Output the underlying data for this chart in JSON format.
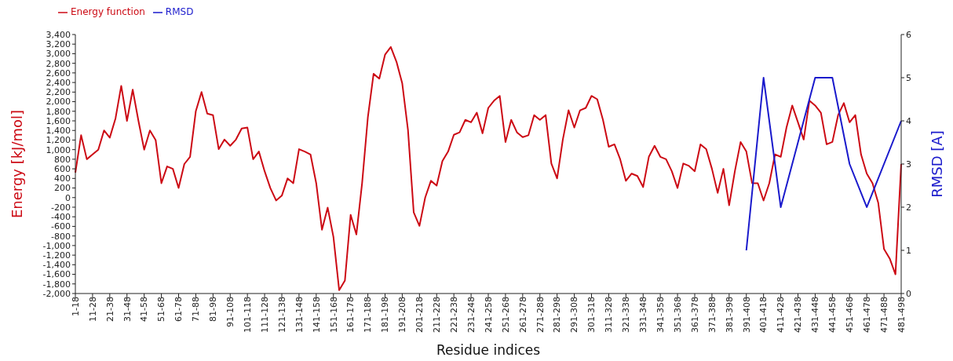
{
  "chart_data": {
    "type": "line",
    "xlabel": "Residue indices",
    "ylabel": "Energy [kJ/mol]",
    "y2label": "RMSD [A]",
    "categories": [
      "1-18",
      null,
      null,
      "11-28",
      null,
      null,
      "21-38",
      null,
      null,
      "31-48",
      null,
      null,
      "41-58",
      null,
      null,
      "51-68",
      null,
      null,
      "61-78",
      null,
      null,
      "71-88",
      null,
      null,
      "81-98",
      null,
      null,
      "91-108",
      null,
      null,
      "101-118",
      null,
      null,
      "111-128",
      null,
      null,
      "121-138",
      null,
      null,
      "131-148",
      null,
      null,
      "141-158",
      null,
      null,
      "151-168",
      null,
      null,
      "161-178",
      null,
      null,
      "171-188",
      null,
      null,
      "181-198",
      null,
      null,
      "191-208",
      null,
      null,
      "201-218",
      null,
      null,
      "211-228",
      null,
      null,
      "221-238",
      null,
      null,
      "231-248",
      null,
      null,
      "241-258",
      null,
      null,
      "251-268",
      null,
      null,
      "261-278",
      null,
      null,
      "271-288",
      null,
      null,
      "281-298",
      null,
      null,
      "291-308",
      null,
      null,
      "301-318",
      null,
      null,
      "311-328",
      null,
      null,
      "321-338",
      null,
      null,
      "331-348",
      null,
      null,
      "341-358",
      null,
      null,
      "351-368",
      null,
      null,
      "361-378",
      null,
      null,
      "371-388",
      null,
      null,
      "381-398",
      null,
      null,
      "391-408",
      null,
      null,
      "401-418",
      null,
      null,
      "411-428",
      null,
      null,
      "421-438",
      null,
      null,
      "431-448",
      null,
      null,
      "441-458",
      null,
      null,
      "451-468",
      null,
      null,
      "461-478",
      null,
      null,
      "471-488",
      null,
      null,
      "481-498"
    ],
    "series": [
      {
        "name": "Energy function",
        "color": "#cc0a14",
        "values": [
          520,
          1300,
          800,
          900,
          1000,
          1400,
          1250,
          1650,
          2330,
          1600,
          2250,
          1600,
          1000,
          1400,
          1200,
          300,
          650,
          600,
          200,
          700,
          850,
          1800,
          2200,
          1750,
          1720,
          1010,
          1210,
          1080,
          1210,
          1440,
          1460,
          800,
          960,
          550,
          200,
          -60,
          40,
          400,
          300,
          1010,
          960,
          900,
          300,
          -670,
          -210,
          -820,
          -1930,
          -1730,
          -360,
          -770,
          300,
          1670,
          2580,
          2480,
          2980,
          3140,
          2830,
          2380,
          1410,
          -310,
          -590,
          0,
          350,
          250,
          760,
          960,
          1310,
          1360,
          1620,
          1570,
          1770,
          1340,
          1870,
          2020,
          2120,
          1160,
          1620,
          1360,
          1260,
          1300,
          1720,
          1620,
          1720,
          710,
          400,
          1210,
          1820,
          1460,
          1820,
          1870,
          2120,
          2050,
          1620,
          1060,
          1110,
          800,
          350,
          500,
          450,
          220,
          850,
          1080,
          850,
          800,
          550,
          200,
          710,
          660,
          550,
          1110,
          1010,
          600,
          100,
          600,
          -160,
          550,
          1160,
          960,
          300,
          300,
          -60,
          300,
          900,
          850,
          1460,
          1920,
          1570,
          1210,
          2020,
          1920,
          1770,
          1110,
          1160,
          1720,
          1970,
          1570,
          1720,
          900,
          500,
          300,
          -110,
          -1070,
          -1270,
          -1600,
          700
        ]
      },
      {
        "name": "RMSD",
        "color": "#1a1acc",
        "axis": "y2",
        "values": [
          null,
          null,
          null,
          null,
          null,
          null,
          null,
          null,
          null,
          null,
          null,
          null,
          null,
          null,
          null,
          null,
          null,
          null,
          null,
          null,
          null,
          null,
          null,
          null,
          null,
          null,
          null,
          null,
          null,
          null,
          null,
          null,
          null,
          null,
          null,
          null,
          null,
          null,
          null,
          null,
          null,
          null,
          null,
          null,
          null,
          null,
          null,
          null,
          null,
          null,
          null,
          null,
          null,
          null,
          null,
          null,
          null,
          null,
          null,
          null,
          null,
          null,
          null,
          null,
          null,
          null,
          null,
          null,
          null,
          null,
          null,
          null,
          null,
          null,
          null,
          null,
          null,
          null,
          null,
          null,
          null,
          null,
          null,
          null,
          null,
          null,
          null,
          null,
          null,
          null,
          null,
          null,
          null,
          null,
          null,
          null,
          null,
          null,
          null,
          null,
          null,
          null,
          null,
          null,
          null,
          null,
          null,
          null,
          null,
          null,
          null,
          null,
          null,
          null,
          null,
          null,
          null,
          1,
          null,
          null,
          5,
          null,
          null,
          2,
          null,
          null,
          null,
          null,
          null,
          5,
          null,
          null,
          5,
          null,
          null,
          3,
          null,
          null,
          2,
          null,
          null,
          null,
          null,
          null,
          4
        ]
      }
    ],
    "ylim": [
      -2000,
      3400
    ],
    "yticks": [
      {
        "value": -2000,
        "label": "-2,000"
      },
      {
        "value": -1800,
        "label": "-1,800"
      },
      {
        "value": -1600,
        "label": "-1,600"
      },
      {
        "value": -1400,
        "label": "-1,400"
      },
      {
        "value": -1200,
        "label": "-1,200"
      },
      {
        "value": -1000,
        "label": "-1,000"
      },
      -800,
      -600,
      -400,
      -200,
      0,
      200,
      400,
      600,
      800,
      {
        "value": 1000,
        "label": "1,000"
      },
      {
        "value": 1200,
        "label": "1,200"
      },
      {
        "value": 1400,
        "label": "1,400"
      },
      {
        "value": 1600,
        "label": "1,600"
      },
      {
        "value": 1800,
        "label": "1,800"
      },
      {
        "value": 2000,
        "label": "2,000"
      },
      {
        "value": 2200,
        "label": "2,200"
      },
      {
        "value": 2400,
        "label": "2,400"
      },
      {
        "value": 2600,
        "label": "2,600"
      },
      {
        "value": 2800,
        "label": "2,800"
      },
      {
        "value": 3000,
        "label": "3,000"
      },
      {
        "value": 3200,
        "label": "3,200"
      },
      {
        "value": 3400,
        "label": "3,400"
      }
    ],
    "y2lim": [
      0,
      6
    ],
    "y2ticks": [
      0,
      1,
      2,
      3,
      4,
      5,
      6
    ],
    "grid": false,
    "legend": "top left",
    "marker": "none",
    "line_style": "solid"
  }
}
